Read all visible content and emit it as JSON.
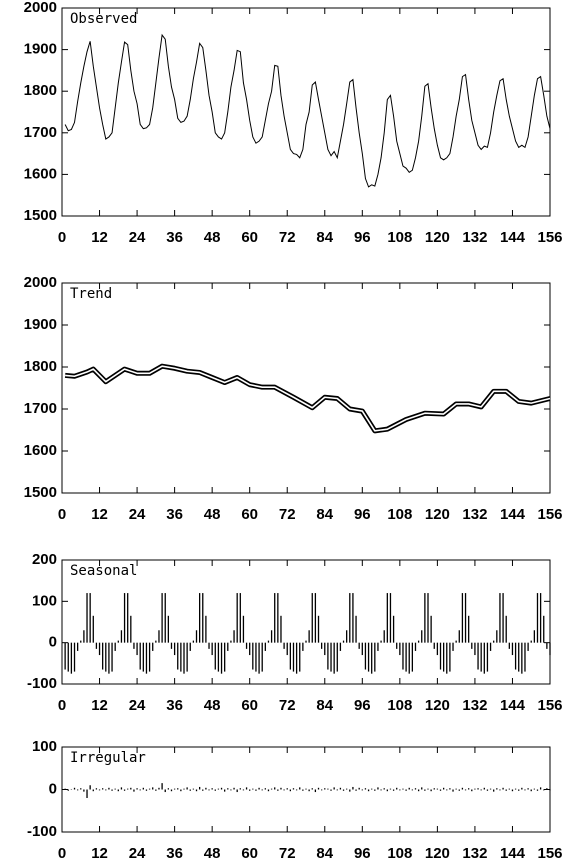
{
  "chart_data": [
    {
      "type": "line",
      "title": "Observed",
      "x": [
        1,
        2,
        3,
        4,
        5,
        6,
        7,
        8,
        9,
        10,
        11,
        12,
        13,
        14,
        15,
        16,
        17,
        18,
        19,
        20,
        21,
        22,
        23,
        24,
        25,
        26,
        27,
        28,
        29,
        30,
        31,
        32,
        33,
        34,
        35,
        36,
        37,
        38,
        39,
        40,
        41,
        42,
        43,
        44,
        45,
        46,
        47,
        48,
        49,
        50,
        51,
        52,
        53,
        54,
        55,
        56,
        57,
        58,
        59,
        60,
        61,
        62,
        63,
        64,
        65,
        66,
        67,
        68,
        69,
        70,
        71,
        72,
        73,
        74,
        75,
        76,
        77,
        78,
        79,
        80,
        81,
        82,
        83,
        84,
        85,
        86,
        87,
        88,
        89,
        90,
        91,
        92,
        93,
        94,
        95,
        96,
        97,
        98,
        99,
        100,
        101,
        102,
        103,
        104,
        105,
        106,
        107,
        108,
        109,
        110,
        111,
        112,
        113,
        114,
        115,
        116,
        117,
        118,
        119,
        120,
        121,
        122,
        123,
        124,
        125,
        126,
        127,
        128,
        129,
        130,
        131,
        132,
        133,
        134,
        135,
        136,
        137,
        138,
        139,
        140,
        141,
        142,
        143,
        144,
        145,
        146,
        147,
        148,
        149,
        150,
        151,
        152,
        153,
        154,
        155,
        156
      ],
      "values": [
        1720,
        1705,
        1708,
        1725,
        1775,
        1820,
        1860,
        1895,
        1920,
        1860,
        1810,
        1760,
        1720,
        1685,
        1690,
        1700,
        1760,
        1820,
        1870,
        1918,
        1912,
        1850,
        1800,
        1770,
        1720,
        1710,
        1712,
        1720,
        1760,
        1820,
        1880,
        1935,
        1925,
        1860,
        1810,
        1780,
        1735,
        1725,
        1728,
        1740,
        1780,
        1830,
        1870,
        1915,
        1905,
        1850,
        1790,
        1750,
        1700,
        1690,
        1685,
        1700,
        1750,
        1810,
        1850,
        1898,
        1895,
        1820,
        1780,
        1730,
        1690,
        1675,
        1680,
        1690,
        1730,
        1770,
        1800,
        1862,
        1860,
        1790,
        1740,
        1700,
        1660,
        1650,
        1648,
        1640,
        1660,
        1720,
        1750,
        1815,
        1822,
        1780,
        1740,
        1700,
        1660,
        1645,
        1655,
        1640,
        1680,
        1720,
        1770,
        1822,
        1828,
        1760,
        1700,
        1650,
        1590,
        1570,
        1575,
        1572,
        1600,
        1640,
        1700,
        1780,
        1790,
        1740,
        1680,
        1650,
        1620,
        1615,
        1605,
        1610,
        1640,
        1680,
        1740,
        1812,
        1818,
        1760,
        1710,
        1670,
        1640,
        1635,
        1640,
        1650,
        1690,
        1740,
        1780,
        1835,
        1840,
        1780,
        1730,
        1700,
        1670,
        1660,
        1668,
        1665,
        1700,
        1750,
        1790,
        1825,
        1830,
        1780,
        1740,
        1710,
        1680,
        1665,
        1670,
        1665,
        1690,
        1740,
        1790,
        1830,
        1835,
        1790,
        1740,
        1710
      ],
      "color": "#000000",
      "xlim": [
        0,
        156
      ],
      "xticks": [
        0,
        12,
        24,
        36,
        48,
        60,
        72,
        84,
        96,
        108,
        120,
        132,
        144,
        156
      ],
      "ylim": [
        1500,
        2000
      ],
      "yticks": [
        1500,
        1600,
        1700,
        1800,
        1900,
        2000
      ]
    },
    {
      "type": "line",
      "title": "Trend",
      "line_style": "double",
      "x": [
        1,
        4,
        8,
        10,
        14,
        20,
        24,
        28,
        32,
        36,
        40,
        44,
        48,
        52,
        56,
        60,
        64,
        68,
        74,
        80,
        84,
        88,
        92,
        96,
        100,
        104,
        110,
        116,
        122,
        126,
        130,
        134,
        138,
        142,
        146,
        150,
        156
      ],
      "values": [
        1780,
        1778,
        1788,
        1795,
        1765,
        1795,
        1785,
        1785,
        1802,
        1797,
        1790,
        1787,
        1775,
        1763,
        1775,
        1758,
        1752,
        1752,
        1728,
        1703,
        1728,
        1725,
        1700,
        1695,
        1648,
        1652,
        1675,
        1690,
        1688,
        1712,
        1712,
        1705,
        1742,
        1742,
        1718,
        1714,
        1725
      ],
      "color": "#000000",
      "xlim": [
        0,
        156
      ],
      "xticks": [
        0,
        12,
        24,
        36,
        48,
        60,
        72,
        84,
        96,
        108,
        120,
        132,
        144,
        156
      ],
      "ylim": [
        1500,
        2000
      ],
      "yticks": [
        1500,
        1600,
        1700,
        1800,
        1900,
        2000
      ]
    },
    {
      "type": "bar",
      "title": "Seasonal",
      "x": [
        1,
        2,
        3,
        4,
        5,
        6,
        7,
        8,
        9,
        10,
        11,
        12,
        13,
        14,
        15,
        16,
        17,
        18,
        19,
        20,
        21,
        22,
        23,
        24,
        25,
        26,
        27,
        28,
        29,
        30,
        31,
        32,
        33,
        34,
        35,
        36,
        37,
        38,
        39,
        40,
        41,
        42,
        43,
        44,
        45,
        46,
        47,
        48,
        49,
        50,
        51,
        52,
        53,
        54,
        55,
        56,
        57,
        58,
        59,
        60,
        61,
        62,
        63,
        64,
        65,
        66,
        67,
        68,
        69,
        70,
        71,
        72,
        73,
        74,
        75,
        76,
        77,
        78,
        79,
        80,
        81,
        82,
        83,
        84,
        85,
        86,
        87,
        88,
        89,
        90,
        91,
        92,
        93,
        94,
        95,
        96,
        97,
        98,
        99,
        100,
        101,
        102,
        103,
        104,
        105,
        106,
        107,
        108,
        109,
        110,
        111,
        112,
        113,
        114,
        115,
        116,
        117,
        118,
        119,
        120,
        121,
        122,
        123,
        124,
        125,
        126,
        127,
        128,
        129,
        130,
        131,
        132,
        133,
        134,
        135,
        136,
        137,
        138,
        139,
        140,
        141,
        142,
        143,
        144,
        145,
        146,
        147,
        148,
        149,
        150,
        151,
        152,
        153,
        154,
        155,
        156
      ],
      "values": [
        -65,
        -70,
        -75,
        -70,
        -20,
        5,
        30,
        120,
        120,
        65,
        -15,
        -30,
        -65,
        -70,
        -75,
        -70,
        -20,
        5,
        30,
        120,
        120,
        65,
        -15,
        -30,
        -65,
        -70,
        -75,
        -70,
        -20,
        5,
        30,
        120,
        120,
        65,
        -15,
        -30,
        -65,
        -70,
        -75,
        -70,
        -20,
        5,
        30,
        120,
        120,
        65,
        -15,
        -30,
        -65,
        -70,
        -75,
        -70,
        -20,
        5,
        30,
        120,
        120,
        65,
        -15,
        -30,
        -65,
        -70,
        -75,
        -70,
        -20,
        5,
        30,
        120,
        120,
        65,
        -15,
        -30,
        -65,
        -70,
        -75,
        -70,
        -20,
        5,
        30,
        120,
        120,
        65,
        -15,
        -30,
        -65,
        -70,
        -75,
        -70,
        -20,
        5,
        30,
        120,
        120,
        65,
        -15,
        -30,
        -65,
        -70,
        -75,
        -70,
        -20,
        5,
        30,
        120,
        120,
        65,
        -15,
        -30,
        -65,
        -70,
        -75,
        -70,
        -20,
        5,
        30,
        120,
        120,
        65,
        -15,
        -30,
        -65,
        -70,
        -75,
        -70,
        -20,
        5,
        30,
        120,
        120,
        65,
        -15,
        -30,
        -65,
        -70,
        -75,
        -70,
        -20,
        5,
        30,
        120,
        120,
        65,
        -15,
        -30,
        -65,
        -70,
        -75,
        -70,
        -20,
        5,
        30,
        120,
        120,
        65,
        -15,
        -30
      ],
      "color": "#000000",
      "xlim": [
        0,
        156
      ],
      "xticks": [
        0,
        12,
        24,
        36,
        48,
        60,
        72,
        84,
        96,
        108,
        120,
        132,
        144,
        156
      ],
      "ylim": [
        -100,
        200
      ],
      "yticks": [
        -100,
        0,
        100,
        200
      ]
    },
    {
      "type": "bar",
      "title": "Irregular",
      "x": [
        1,
        2,
        3,
        4,
        5,
        6,
        7,
        8,
        9,
        10,
        11,
        12,
        13,
        14,
        15,
        16,
        17,
        18,
        19,
        20,
        21,
        22,
        23,
        24,
        25,
        26,
        27,
        28,
        29,
        30,
        31,
        32,
        33,
        34,
        35,
        36,
        37,
        38,
        39,
        40,
        41,
        42,
        43,
        44,
        45,
        46,
        47,
        48,
        49,
        50,
        51,
        52,
        53,
        54,
        55,
        56,
        57,
        58,
        59,
        60,
        61,
        62,
        63,
        64,
        65,
        66,
        67,
        68,
        69,
        70,
        71,
        72,
        73,
        74,
        75,
        76,
        77,
        78,
        79,
        80,
        81,
        82,
        83,
        84,
        85,
        86,
        87,
        88,
        89,
        90,
        91,
        92,
        93,
        94,
        95,
        96,
        97,
        98,
        99,
        100,
        101,
        102,
        103,
        104,
        105,
        106,
        107,
        108,
        109,
        110,
        111,
        112,
        113,
        114,
        115,
        116,
        117,
        118,
        119,
        120,
        121,
        122,
        123,
        124,
        125,
        126,
        127,
        128,
        129,
        130,
        131,
        132,
        133,
        134,
        135,
        136,
        137,
        138,
        139,
        140,
        141,
        142,
        143,
        144,
        145,
        146,
        147,
        148,
        149,
        150,
        151,
        152,
        153,
        154,
        155,
        156
      ],
      "values": [
        2,
        -3,
        1,
        4,
        -2,
        3,
        -5,
        -20,
        10,
        -4,
        3,
        -2,
        3,
        -2,
        4,
        -3,
        2,
        -4,
        5,
        -3,
        2,
        4,
        -5,
        3,
        -2,
        4,
        -3,
        2,
        5,
        -3,
        4,
        15,
        -6,
        3,
        -4,
        2,
        3,
        -4,
        2,
        5,
        -3,
        2,
        -4,
        6,
        -3,
        4,
        -2,
        3,
        -3,
        2,
        4,
        -5,
        3,
        -2,
        4,
        -6,
        3,
        -2,
        5,
        -3,
        2,
        -3,
        4,
        -2,
        3,
        -4,
        2,
        5,
        -3,
        4,
        -2,
        3,
        -4,
        3,
        -2,
        5,
        -3,
        2,
        -4,
        3,
        -6,
        4,
        -2,
        3,
        2,
        -3,
        5,
        -2,
        4,
        -3,
        2,
        -5,
        6,
        -3,
        4,
        -2,
        3,
        -4,
        2,
        -3,
        5,
        -2,
        3,
        -4,
        2,
        -3,
        4,
        -2,
        2,
        -3,
        4,
        -2,
        3,
        -4,
        5,
        -3,
        2,
        -4,
        3,
        2,
        -3,
        4,
        -2,
        3,
        -5,
        2,
        -3,
        4,
        -2,
        3,
        -4,
        2,
        3,
        -2,
        4,
        -3,
        2,
        -5,
        3,
        -2,
        4,
        -3,
        2,
        -4,
        2,
        -3,
        4,
        -2,
        3,
        -4,
        2,
        -3,
        5,
        -2,
        3,
        -2
      ],
      "color": "#000000",
      "xlim": [
        0,
        156
      ],
      "xticks": [
        0,
        12,
        24,
        36,
        48,
        60,
        72,
        84,
        96,
        108,
        120,
        132,
        144,
        156
      ],
      "ylim": [
        -100,
        100
      ],
      "yticks": [
        -100,
        0,
        100
      ]
    }
  ]
}
